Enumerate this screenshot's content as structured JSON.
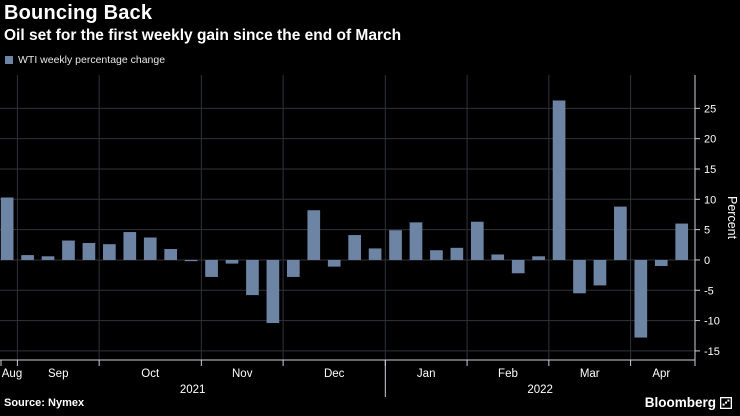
{
  "header": {
    "title": "Bouncing Back",
    "subtitle": "Oil set for the first weekly gain since the end of March"
  },
  "legend": {
    "label": "WTI weekly percentage change"
  },
  "footer": {
    "source": "Source: Nymex",
    "brand": "Bloomberg"
  },
  "colors": {
    "background": "#000000",
    "bar": "#6E84A4",
    "gridline": "#2F3338",
    "axis": "#CBD0D6",
    "text": "#FFFFFF"
  },
  "chart_data": {
    "type": "bar",
    "title": "Bouncing Back",
    "subtitle": "Oil set for the first weekly gain since the end of March",
    "series_name": "WTI weekly percentage change",
    "x_unit": "week",
    "ylabel": "Percent",
    "ylim": [
      -16.5,
      30.5
    ],
    "yticks": [
      25,
      20,
      15,
      10,
      5,
      0,
      -5,
      -10,
      -15
    ],
    "grid": true,
    "legend_position": "top-left",
    "bar_color": "#6E84A4",
    "weeks": [
      {
        "month": "Aug",
        "year": "2021",
        "value": 10.3
      },
      {
        "month": "Sep",
        "year": "2021",
        "value": 0.8
      },
      {
        "month": "Sep",
        "year": "2021",
        "value": 0.6
      },
      {
        "month": "Sep",
        "year": "2021",
        "value": 3.2
      },
      {
        "month": "Sep",
        "year": "2021",
        "value": 2.8
      },
      {
        "month": "Oct",
        "year": "2021",
        "value": 2.6
      },
      {
        "month": "Oct",
        "year": "2021",
        "value": 4.6
      },
      {
        "month": "Oct",
        "year": "2021",
        "value": 3.7
      },
      {
        "month": "Oct",
        "year": "2021",
        "value": 1.8
      },
      {
        "month": "Oct",
        "year": "2021",
        "value": -0.2
      },
      {
        "month": "Nov",
        "year": "2021",
        "value": -2.8
      },
      {
        "month": "Nov",
        "year": "2021",
        "value": -0.6
      },
      {
        "month": "Nov",
        "year": "2021",
        "value": -5.8
      },
      {
        "month": "Nov",
        "year": "2021",
        "value": -10.4
      },
      {
        "month": "Dec",
        "year": "2021",
        "value": -2.8
      },
      {
        "month": "Dec",
        "year": "2021",
        "value": 8.2
      },
      {
        "month": "Dec",
        "year": "2021",
        "value": -1.1
      },
      {
        "month": "Dec",
        "year": "2021",
        "value": 4.1
      },
      {
        "month": "Dec",
        "year": "2021",
        "value": 1.9
      },
      {
        "month": "Jan",
        "year": "2022",
        "value": 4.9
      },
      {
        "month": "Jan",
        "year": "2022",
        "value": 6.2
      },
      {
        "month": "Jan",
        "year": "2022",
        "value": 1.6
      },
      {
        "month": "Jan",
        "year": "2022",
        "value": 2.0
      },
      {
        "month": "Feb",
        "year": "2022",
        "value": 6.3
      },
      {
        "month": "Feb",
        "year": "2022",
        "value": 0.9
      },
      {
        "month": "Feb",
        "year": "2022",
        "value": -2.2
      },
      {
        "month": "Feb",
        "year": "2022",
        "value": 0.6
      },
      {
        "month": "Mar",
        "year": "2022",
        "value": 26.3
      },
      {
        "month": "Mar",
        "year": "2022",
        "value": -5.5
      },
      {
        "month": "Mar",
        "year": "2022",
        "value": -4.2
      },
      {
        "month": "Mar",
        "year": "2022",
        "value": 8.8
      },
      {
        "month": "Apr",
        "year": "2022",
        "value": -12.8
      },
      {
        "month": "Apr",
        "year": "2022",
        "value": -1.0
      },
      {
        "month": "Apr",
        "year": "2022",
        "value": 6.0
      }
    ]
  }
}
